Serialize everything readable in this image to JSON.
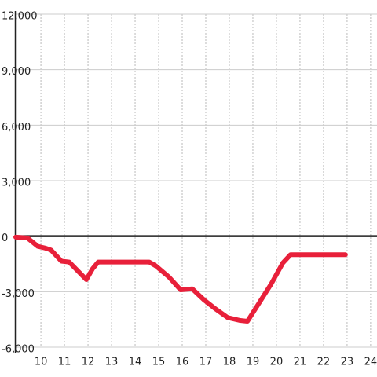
{
  "chart_data": {
    "type": "line",
    "x": [
      8.93,
      9.43,
      9.87,
      10.2,
      10.43,
      10.87,
      11.2,
      11.93,
      12.2,
      12.43,
      14.6,
      14.87,
      15.43,
      15.93,
      16.43,
      16.93,
      17.43,
      17.93,
      18.43,
      18.77,
      19.27,
      19.77,
      20.27,
      20.6,
      22.93
    ],
    "series": [
      {
        "color": "#e8203a",
        "values": [
          -50,
          -100,
          -550,
          -650,
          -750,
          -1350,
          -1400,
          -2350,
          -1750,
          -1400,
          -1400,
          -1600,
          -2200,
          -2900,
          -2850,
          -3450,
          -3950,
          -4400,
          -4550,
          -4600,
          -3600,
          -2600,
          -1450,
          -1000,
          -1000
        ]
      }
    ],
    "xlim": [
      8.93,
      24.27
    ],
    "xticks": [
      10,
      11,
      12,
      13,
      14,
      15,
      16,
      17,
      18,
      19,
      20,
      21,
      22,
      23,
      24
    ],
    "ylim": [
      -6000,
      12000
    ],
    "yticks": [
      {
        "value": -6000,
        "label": "-6,000"
      },
      {
        "value": -3000,
        "label": "-3,000"
      },
      0,
      {
        "value": 3000,
        "label": "3,000"
      },
      {
        "value": 6000,
        "label": "6,000"
      },
      {
        "value": 9000,
        "label": "9,000"
      },
      {
        "value": 12000,
        "label": "12,000"
      }
    ],
    "grid": true
  }
}
